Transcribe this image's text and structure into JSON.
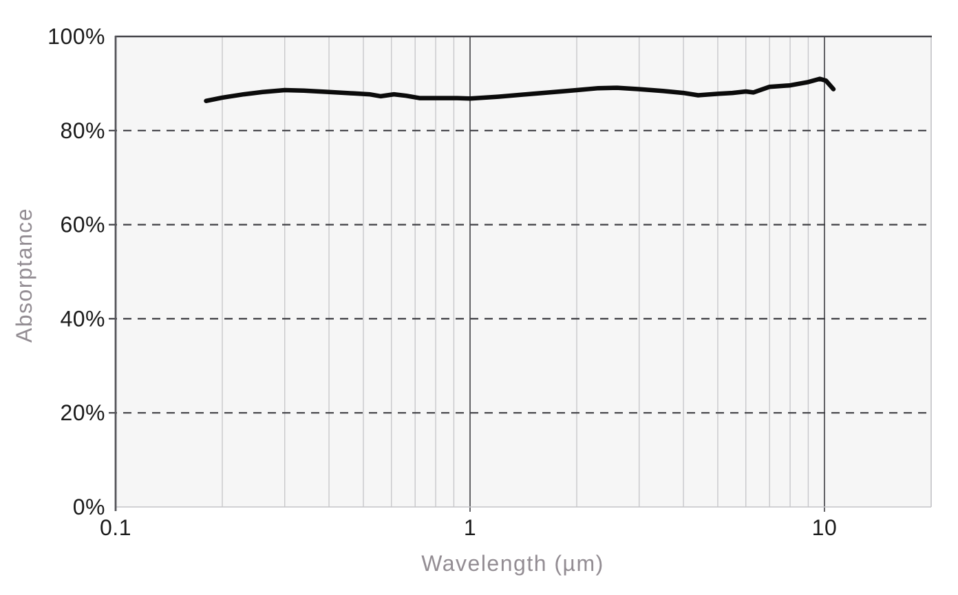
{
  "colors": {
    "page_background": "#ffffff",
    "plot_background": "#f6f6f6",
    "grid_minor": "#c7c7ca",
    "grid_major": "#626266",
    "axis_left": "#55555a",
    "axis_top": "#45454a",
    "border_light": "#c4c4c7",
    "dashed_gridline": "#3e3e43",
    "tick_label": "#1b1b1b",
    "axis_title": "#938d93",
    "series_line": "#0b0b0b"
  },
  "chart_data": {
    "type": "line",
    "title": "",
    "xlabel": "Wavelength (µm)",
    "ylabel": "Absorptance",
    "x_scale": "log",
    "x_range": [
      0.1,
      20
    ],
    "y_range": [
      0,
      100
    ],
    "grid": true,
    "legend": "none",
    "x_ticks": [
      {
        "value": 0.1,
        "label": "0.1"
      },
      {
        "value": 1,
        "label": "1"
      },
      {
        "value": 10,
        "label": "10"
      }
    ],
    "y_ticks": [
      {
        "value": 0,
        "label": "0%"
      },
      {
        "value": 20,
        "label": "20%"
      },
      {
        "value": 40,
        "label": "40%"
      },
      {
        "value": 60,
        "label": "60%"
      },
      {
        "value": 80,
        "label": "80%"
      },
      {
        "value": 100,
        "label": "100%"
      }
    ],
    "x_gridlines_minor": [
      0.2,
      0.3,
      0.4,
      0.5,
      0.6,
      0.7,
      0.8,
      0.9,
      2,
      3,
      4,
      5,
      6,
      7,
      8,
      9,
      20
    ],
    "x_gridlines_major": [
      1,
      10
    ],
    "y_gridlines_dashed": [
      20,
      40,
      60,
      80
    ],
    "series": [
      {
        "name": "Absorptance",
        "color": "#0b0b0b",
        "stroke_width": 6.5,
        "points": [
          [
            0.18,
            86.3
          ],
          [
            0.2,
            87.0
          ],
          [
            0.23,
            87.7
          ],
          [
            0.26,
            88.2
          ],
          [
            0.3,
            88.6
          ],
          [
            0.34,
            88.5
          ],
          [
            0.4,
            88.2
          ],
          [
            0.47,
            87.9
          ],
          [
            0.52,
            87.7
          ],
          [
            0.56,
            87.3
          ],
          [
            0.61,
            87.7
          ],
          [
            0.66,
            87.4
          ],
          [
            0.72,
            86.9
          ],
          [
            0.82,
            86.9
          ],
          [
            0.92,
            86.9
          ],
          [
            1.0,
            86.8
          ],
          [
            1.2,
            87.2
          ],
          [
            1.5,
            87.8
          ],
          [
            1.8,
            88.3
          ],
          [
            2.0,
            88.6
          ],
          [
            2.3,
            89.0
          ],
          [
            2.6,
            89.1
          ],
          [
            3.0,
            88.8
          ],
          [
            3.5,
            88.4
          ],
          [
            4.0,
            88.0
          ],
          [
            4.4,
            87.5
          ],
          [
            5.0,
            87.8
          ],
          [
            5.5,
            88.0
          ],
          [
            6.0,
            88.3
          ],
          [
            6.3,
            88.1
          ],
          [
            7.0,
            89.3
          ],
          [
            8.0,
            89.6
          ],
          [
            9.0,
            90.3
          ],
          [
            9.7,
            91.0
          ],
          [
            10.1,
            90.6
          ],
          [
            10.6,
            88.8
          ]
        ]
      }
    ]
  }
}
